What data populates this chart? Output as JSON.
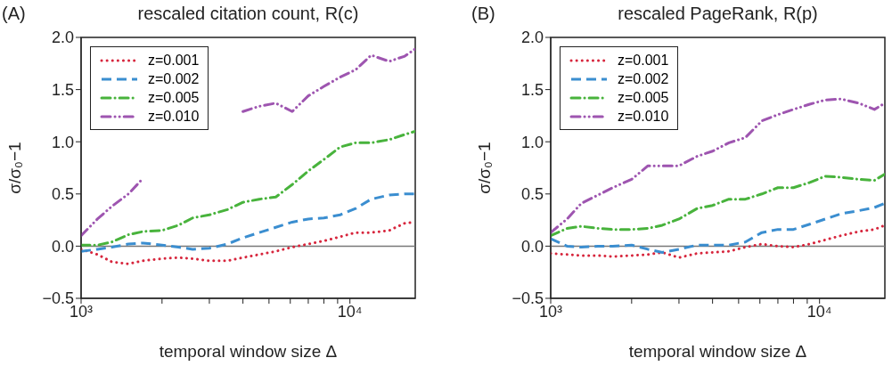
{
  "chart_data": [
    {
      "type": "line",
      "title": "rescaled citation count, R(c)",
      "annotations": [
        "(A)"
      ],
      "xlabel": "temporal window size Δ",
      "ylabel": "σ/σ₀−1",
      "log": "x",
      "legend": "top left",
      "x": [
        1000,
        1150,
        1300,
        1500,
        1700,
        2000,
        2300,
        2600,
        3000,
        3500,
        4000,
        4600,
        5300,
        6100,
        7000,
        8000,
        9200,
        10500,
        12000,
        14000,
        16000,
        17500
      ],
      "xlim": [
        1000,
        17500
      ],
      "xticks": [
        {
          "value": 1000,
          "label": "10³"
        },
        {
          "value": 2000,
          "label": null
        },
        {
          "value": 3000,
          "label": null
        },
        {
          "value": 4000,
          "label": null
        },
        {
          "value": 5000,
          "label": null
        },
        {
          "value": 6000,
          "label": null
        },
        {
          "value": 7000,
          "label": null
        },
        {
          "value": 8000,
          "label": null
        },
        {
          "value": 9000,
          "label": null
        },
        {
          "value": 10000,
          "label": "10⁴"
        }
      ],
      "ylim": [
        -0.5,
        2.0
      ],
      "yticks": [
        {
          "value": -0.5,
          "label": "−0.5"
        },
        {
          "value": 0,
          "label": "0.0"
        },
        {
          "value": 0.5,
          "label": "0.5"
        },
        {
          "value": 1,
          "label": "1.0"
        },
        {
          "value": 1.5,
          "label": "1.5"
        },
        {
          "value": 2,
          "label": "2.0"
        }
      ],
      "ref_lines": [
        {
          "axis": "y",
          "value": 0,
          "color": "#777777"
        }
      ],
      "series": [
        {
          "name": "z=0.001",
          "color": "#d7263d",
          "line_style": "dotted",
          "values": [
            -0.03,
            -0.08,
            -0.15,
            -0.17,
            -0.14,
            -0.12,
            -0.11,
            -0.12,
            -0.14,
            -0.14,
            -0.11,
            -0.08,
            -0.05,
            -0.01,
            0.02,
            0.05,
            0.09,
            0.13,
            0.13,
            0.15,
            0.22,
            0.23
          ]
        },
        {
          "name": "z=0.002",
          "color": "#3b8ed0",
          "line_style": "dashed",
          "values": [
            -0.05,
            -0.03,
            -0.01,
            0.02,
            0.03,
            0.01,
            -0.01,
            -0.03,
            -0.02,
            0.02,
            0.08,
            0.13,
            0.18,
            0.23,
            0.26,
            0.27,
            0.3,
            0.36,
            0.45,
            0.49,
            0.5,
            0.5
          ]
        },
        {
          "name": "z=0.005",
          "color": "#48b33c",
          "line_style": "dashdot",
          "values": [
            0.01,
            0.01,
            0.04,
            0.11,
            0.14,
            0.15,
            0.2,
            0.27,
            0.3,
            0.35,
            0.42,
            0.45,
            0.47,
            0.59,
            0.72,
            0.83,
            0.95,
            0.99,
            0.99,
            1.02,
            1.07,
            1.1
          ]
        },
        {
          "name": "z=0.010",
          "color": "#9e55b0",
          "line_style": "dashdotdot",
          "values": [
            0.1,
            0.26,
            0.38,
            0.5,
            0.65,
            null,
            null,
            null,
            null,
            null,
            1.29,
            1.34,
            1.37,
            1.29,
            1.44,
            1.53,
            1.62,
            1.69,
            1.83,
            1.77,
            1.82,
            1.89
          ]
        }
      ]
    },
    {
      "type": "line",
      "title": "rescaled PageRank, R(p)",
      "annotations": [
        "(B)"
      ],
      "xlabel": "temporal window size Δ",
      "ylabel": "σ/σ₀−1",
      "log": "x",
      "legend": "top left",
      "x": [
        1000,
        1150,
        1300,
        1500,
        1700,
        2000,
        2300,
        2600,
        3000,
        3500,
        4000,
        4600,
        5300,
        6100,
        7000,
        8000,
        9200,
        10500,
        12000,
        14000,
        16000,
        17500
      ],
      "xlim": [
        1000,
        17500
      ],
      "xticks": [
        {
          "value": 1000,
          "label": "10³"
        },
        {
          "value": 2000,
          "label": null
        },
        {
          "value": 3000,
          "label": null
        },
        {
          "value": 4000,
          "label": null
        },
        {
          "value": 5000,
          "label": null
        },
        {
          "value": 6000,
          "label": null
        },
        {
          "value": 7000,
          "label": null
        },
        {
          "value": 8000,
          "label": null
        },
        {
          "value": 9000,
          "label": null
        },
        {
          "value": 10000,
          "label": "10⁴"
        }
      ],
      "ylim": [
        -0.5,
        2.0
      ],
      "yticks": [
        {
          "value": -0.5,
          "label": "−0.5"
        },
        {
          "value": 0,
          "label": "0.0"
        },
        {
          "value": 0.5,
          "label": "0.5"
        },
        {
          "value": 1,
          "label": "1.0"
        },
        {
          "value": 1.5,
          "label": "1.5"
        },
        {
          "value": 2,
          "label": "2.0"
        }
      ],
      "ref_lines": [
        {
          "axis": "y",
          "value": 0,
          "color": "#777777"
        }
      ],
      "series": [
        {
          "name": "z=0.001",
          "color": "#d7263d",
          "line_style": "dotted",
          "values": [
            -0.07,
            -0.08,
            -0.09,
            -0.09,
            -0.1,
            -0.09,
            -0.08,
            -0.06,
            -0.11,
            -0.07,
            -0.06,
            -0.05,
            -0.01,
            0.02,
            0.0,
            -0.01,
            0.02,
            0.06,
            0.1,
            0.14,
            0.16,
            0.2
          ]
        },
        {
          "name": "z=0.002",
          "color": "#3b8ed0",
          "line_style": "dashed",
          "values": [
            0.07,
            0.0,
            -0.01,
            0.0,
            0.0,
            0.01,
            -0.03,
            -0.06,
            -0.03,
            0.01,
            0.01,
            0.01,
            0.04,
            0.13,
            0.16,
            0.16,
            0.21,
            0.26,
            0.31,
            0.34,
            0.37,
            0.41
          ]
        },
        {
          "name": "z=0.005",
          "color": "#48b33c",
          "line_style": "dashdot",
          "values": [
            0.1,
            0.17,
            0.19,
            0.17,
            0.16,
            0.16,
            0.17,
            0.2,
            0.26,
            0.36,
            0.39,
            0.45,
            0.45,
            0.5,
            0.56,
            0.56,
            0.61,
            0.67,
            0.66,
            0.64,
            0.63,
            0.69
          ]
        },
        {
          "name": "z=0.010",
          "color": "#9e55b0",
          "line_style": "dashdotdot",
          "values": [
            0.13,
            0.26,
            0.41,
            0.49,
            0.56,
            0.64,
            0.77,
            0.77,
            0.77,
            0.86,
            0.91,
            0.99,
            1.04,
            1.2,
            1.26,
            1.31,
            1.36,
            1.4,
            1.41,
            1.37,
            1.31,
            1.37
          ]
        }
      ]
    }
  ]
}
